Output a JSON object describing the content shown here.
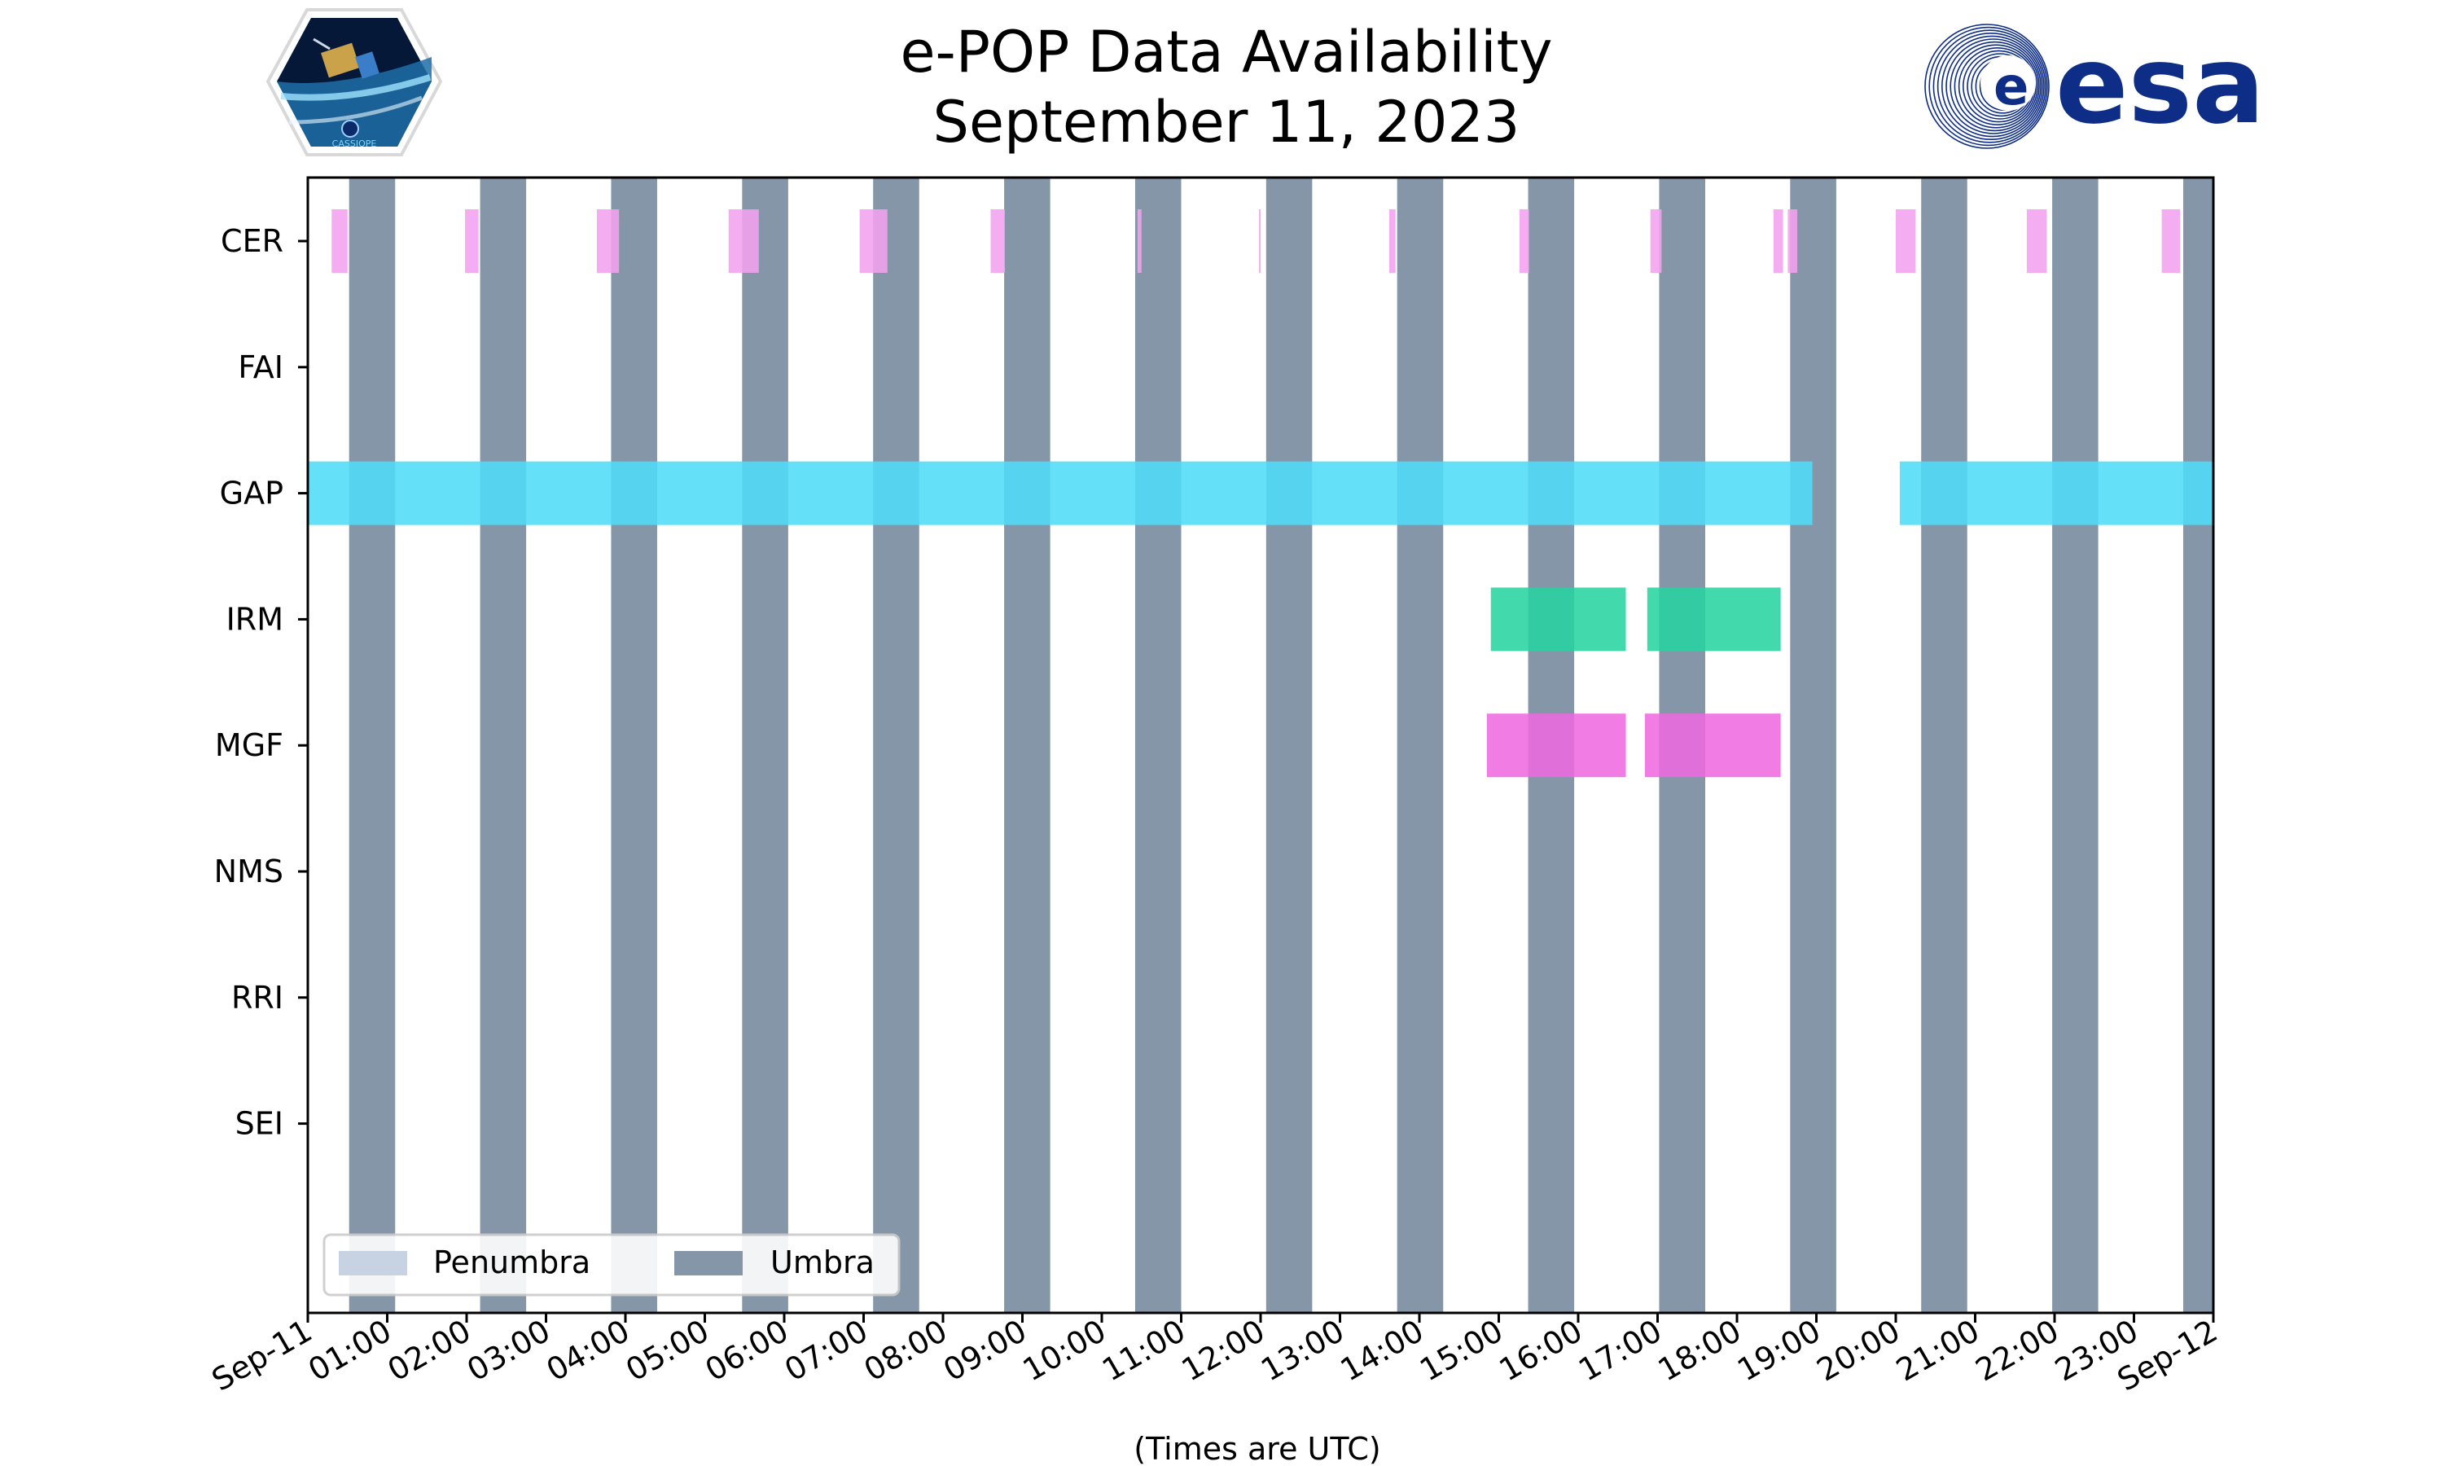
{
  "colors": {
    "umbra": "#8596a8",
    "penumbra": "#c7d3e3",
    "cer": "#f3a2ee",
    "gap": "#4fdcf8",
    "irm": "#28d4a0",
    "mgf": "#ee6ae0",
    "esa_blue": "#0d2d86"
  },
  "logos": {
    "cassiope_text": "CASSIOPE",
    "esa_text": "esa"
  },
  "chart_data": {
    "type": "timeline",
    "title": "e-POP Data Availability",
    "subtitle": "September 11, 2023",
    "xlabel": "(Times are UTC)",
    "xlim_hours": [
      0,
      24
    ],
    "xtick_labels": [
      "Sep-11",
      "01:00",
      "02:00",
      "03:00",
      "04:00",
      "05:00",
      "06:00",
      "07:00",
      "08:00",
      "09:00",
      "10:00",
      "11:00",
      "12:00",
      "13:00",
      "14:00",
      "15:00",
      "16:00",
      "17:00",
      "18:00",
      "19:00",
      "20:00",
      "21:00",
      "22:00",
      "23:00",
      "Sep-12"
    ],
    "instruments": [
      "CER",
      "FAI",
      "GAP",
      "IRM",
      "MGF",
      "NMS",
      "RRI",
      "SEI"
    ],
    "umbra_intervals": [
      [
        0.52,
        1.1
      ],
      [
        2.17,
        2.75
      ],
      [
        3.82,
        4.4
      ],
      [
        5.47,
        6.05
      ],
      [
        7.12,
        7.7
      ],
      [
        8.77,
        9.35
      ],
      [
        10.42,
        11.0
      ],
      [
        12.07,
        12.65
      ],
      [
        13.72,
        14.3
      ],
      [
        15.37,
        15.95
      ],
      [
        17.02,
        17.6
      ],
      [
        18.67,
        19.25
      ],
      [
        20.32,
        20.9
      ],
      [
        21.97,
        22.55
      ],
      [
        23.62,
        24.0
      ]
    ],
    "penumbra_intervals": [],
    "data": [
      {
        "instrument": "CER",
        "intervals": [
          [
            0.3,
            0.5
          ],
          [
            1.98,
            2.15
          ],
          [
            3.64,
            3.92
          ],
          [
            5.3,
            5.68
          ],
          [
            6.95,
            7.3
          ],
          [
            8.6,
            8.78
          ],
          [
            10.45,
            10.5
          ],
          [
            11.98,
            12.0
          ],
          [
            13.62,
            13.7
          ],
          [
            15.26,
            15.38
          ],
          [
            16.91,
            17.05
          ],
          [
            18.46,
            18.58
          ],
          [
            18.64,
            18.76
          ],
          [
            20.0,
            20.25
          ],
          [
            21.65,
            21.9
          ],
          [
            23.35,
            23.58
          ]
        ]
      },
      {
        "instrument": "FAI",
        "intervals": []
      },
      {
        "instrument": "GAP",
        "intervals": [
          [
            0.0,
            18.95
          ],
          [
            20.05,
            24.0
          ]
        ]
      },
      {
        "instrument": "IRM",
        "intervals": [
          [
            14.9,
            16.6
          ],
          [
            16.87,
            18.55
          ]
        ]
      },
      {
        "instrument": "MGF",
        "intervals": [
          [
            14.85,
            16.6
          ],
          [
            16.84,
            18.55
          ]
        ]
      },
      {
        "instrument": "NMS",
        "intervals": []
      },
      {
        "instrument": "RRI",
        "intervals": []
      },
      {
        "instrument": "SEI",
        "intervals": []
      }
    ],
    "legend": {
      "position": "lower-left",
      "entries": [
        "Penumbra",
        "Umbra"
      ]
    }
  }
}
